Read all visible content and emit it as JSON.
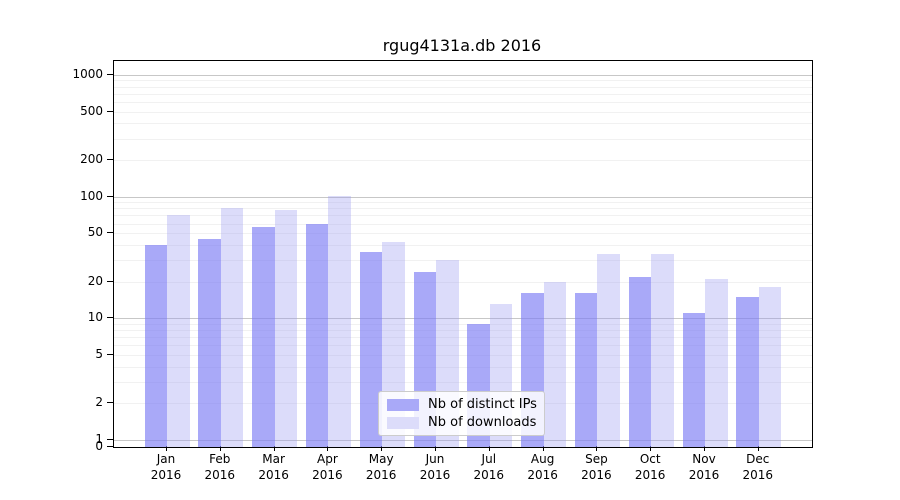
{
  "chart_data": {
    "type": "bar",
    "title": "rgug4131a.db 2016",
    "scale": "symlog",
    "grid": true,
    "legend_position": "lower-center",
    "categories": [
      "Jan",
      "Feb",
      "Mar",
      "Apr",
      "May",
      "Jun",
      "Jul",
      "Aug",
      "Sep",
      "Oct",
      "Nov",
      "Dec"
    ],
    "year_label": "2016",
    "series": [
      {
        "name": "Nb of distinct IPs",
        "color": "#a9a9f8",
        "values": [
          40,
          45,
          56,
          60,
          35,
          24,
          9,
          16,
          16,
          22,
          11,
          15
        ]
      },
      {
        "name": "Nb of downloads",
        "color": "#dcdcfa",
        "values": [
          70,
          80,
          78,
          102,
          42,
          30,
          13,
          20,
          34,
          34,
          21,
          18
        ]
      }
    ],
    "yticks": [
      0,
      1,
      2,
      5,
      10,
      20,
      50,
      100,
      200,
      500,
      1000
    ],
    "ylim": [
      0,
      1300
    ]
  }
}
